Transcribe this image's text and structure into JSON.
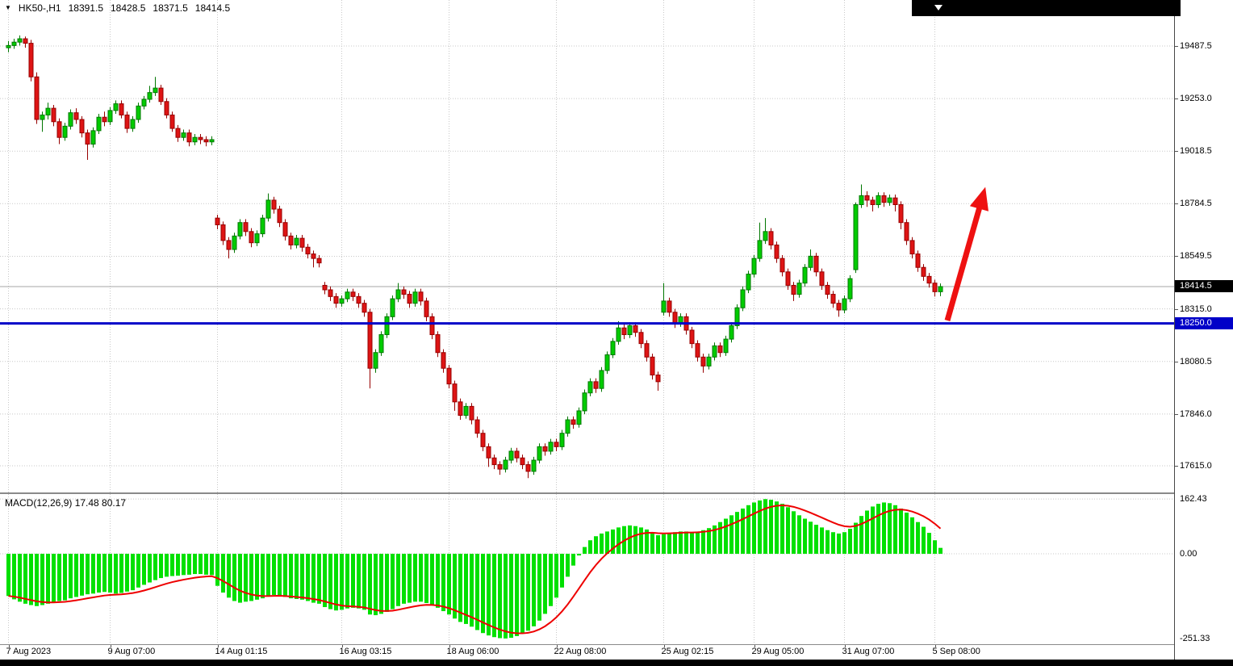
{
  "header": {
    "symbol": "HK50-,H1",
    "open": "18391.5",
    "high": "18428.5",
    "low": "18371.5",
    "close": "18414.5"
  },
  "colors": {
    "up": "#00CC00",
    "up_border": "#007700",
    "down": "#DE1414",
    "down_border": "#970000",
    "macd_bar": "#00E000",
    "signal": "#EE0000",
    "support_line": "#0000C8",
    "current_line": "#A4A4A4",
    "grid": "#C8C8C8",
    "arrow": "#EE1111",
    "current_label_bg": "#000000",
    "support_label_bg": "#0000C8"
  },
  "chart_data": {
    "type": "candlestick",
    "symbol": "HK50-",
    "timeframe": "H1",
    "last_ohlc": {
      "open": 18391.5,
      "high": 18428.5,
      "low": 18371.5,
      "close": 18414.5
    },
    "price_axis": {
      "gridlines": [
        19487.5,
        19253.0,
        19018.5,
        18784.5,
        18549.5,
        18315.0,
        18080.5,
        17846.0,
        17615.0
      ],
      "ylim": [
        17496,
        19693
      ],
      "current_price": 18414.5,
      "support_line": 18250.0
    },
    "x_ticks": [
      {
        "label": "7 Aug 2023",
        "i": 0
      },
      {
        "label": "9 Aug 07:00",
        "i": 18
      },
      {
        "label": "14 Aug 01:15",
        "i": 37
      },
      {
        "label": "16 Aug 03:15",
        "i": 59
      },
      {
        "label": "18 Aug 06:00",
        "i": 78
      },
      {
        "label": "22 Aug 08:00",
        "i": 97
      },
      {
        "label": "25 Aug 02:15",
        "i": 116
      },
      {
        "label": "29 Aug 05:00",
        "i": 132
      },
      {
        "label": "31 Aug 07:00",
        "i": 148
      },
      {
        "label": "5 Sep 08:00",
        "i": 164
      }
    ],
    "candles": [
      [
        19480,
        19510,
        19460,
        19490
      ],
      [
        19490,
        19520,
        19475,
        19505
      ],
      [
        19505,
        19535,
        19490,
        19520
      ],
      [
        19520,
        19530,
        19480,
        19500
      ],
      [
        19500,
        19515,
        19330,
        19350
      ],
      [
        19350,
        19370,
        19140,
        19160
      ],
      [
        19160,
        19195,
        19105,
        19180
      ],
      [
        19180,
        19235,
        19160,
        19210
      ],
      [
        19210,
        19225,
        19130,
        19150
      ],
      [
        19150,
        19165,
        19050,
        19080
      ],
      [
        19080,
        19145,
        19065,
        19130
      ],
      [
        19130,
        19205,
        19115,
        19190
      ],
      [
        19190,
        19210,
        19140,
        19160
      ],
      [
        19160,
        19175,
        19080,
        19100
      ],
      [
        19100,
        19115,
        18980,
        19050
      ],
      [
        19050,
        19125,
        19035,
        19110
      ],
      [
        19110,
        19185,
        19095,
        19170
      ],
      [
        19170,
        19195,
        19130,
        19150
      ],
      [
        19150,
        19215,
        19135,
        19200
      ],
      [
        19200,
        19245,
        19185,
        19230
      ],
      [
        19230,
        19245,
        19165,
        19180
      ],
      [
        19180,
        19195,
        19100,
        19120
      ],
      [
        19120,
        19175,
        19105,
        19160
      ],
      [
        19160,
        19235,
        19145,
        19220
      ],
      [
        19220,
        19265,
        19205,
        19250
      ],
      [
        19250,
        19310,
        19235,
        19280
      ],
      [
        19280,
        19350,
        19265,
        19300
      ],
      [
        19300,
        19315,
        19225,
        19240
      ],
      [
        19240,
        19255,
        19165,
        19180
      ],
      [
        19180,
        19195,
        19105,
        19120
      ],
      [
        19120,
        19135,
        19060,
        19080
      ],
      [
        19080,
        19115,
        19065,
        19100
      ],
      [
        19100,
        19115,
        19040,
        19060
      ],
      [
        19060,
        19095,
        19045,
        19080
      ],
      [
        19080,
        19095,
        19050,
        19070
      ],
      [
        19070,
        19085,
        19040,
        19060
      ],
      [
        19060,
        19085,
        19045,
        19070
      ],
      [
        18720,
        18735,
        18670,
        18690
      ],
      [
        18690,
        18705,
        18600,
        18620
      ],
      [
        18620,
        18635,
        18540,
        18580
      ],
      [
        18580,
        18655,
        18565,
        18640
      ],
      [
        18640,
        18715,
        18625,
        18700
      ],
      [
        18700,
        18715,
        18640,
        18660
      ],
      [
        18660,
        18675,
        18590,
        18610
      ],
      [
        18610,
        18665,
        18595,
        18650
      ],
      [
        18650,
        18735,
        18635,
        18720
      ],
      [
        18720,
        18830,
        18705,
        18800
      ],
      [
        18800,
        18815,
        18740,
        18760
      ],
      [
        18760,
        18775,
        18680,
        18700
      ],
      [
        18700,
        18715,
        18620,
        18640
      ],
      [
        18640,
        18655,
        18580,
        18600
      ],
      [
        18600,
        18645,
        18585,
        18630
      ],
      [
        18630,
        18645,
        18570,
        18590
      ],
      [
        18590,
        18605,
        18540,
        18560
      ],
      [
        18560,
        18575,
        18500,
        18540
      ],
      [
        18540,
        18555,
        18500,
        18520
      ],
      [
        18420,
        18435,
        18380,
        18400
      ],
      [
        18400,
        18415,
        18350,
        18370
      ],
      [
        18370,
        18385,
        18320,
        18340
      ],
      [
        18340,
        18375,
        18325,
        18360
      ],
      [
        18360,
        18405,
        18345,
        18390
      ],
      [
        18390,
        18405,
        18350,
        18370
      ],
      [
        18370,
        18385,
        18320,
        18340
      ],
      [
        18340,
        18355,
        18280,
        18300
      ],
      [
        18300,
        18315,
        17960,
        18050
      ],
      [
        18050,
        18135,
        18030,
        18120
      ],
      [
        18120,
        18215,
        18105,
        18200
      ],
      [
        18200,
        18295,
        18185,
        18280
      ],
      [
        18280,
        18375,
        18265,
        18360
      ],
      [
        18360,
        18430,
        18345,
        18400
      ],
      [
        18400,
        18415,
        18360,
        18380
      ],
      [
        18380,
        18395,
        18320,
        18340
      ],
      [
        18340,
        18405,
        18325,
        18390
      ],
      [
        18390,
        18405,
        18330,
        18350
      ],
      [
        18350,
        18365,
        18260,
        18280
      ],
      [
        18280,
        18295,
        18180,
        18200
      ],
      [
        18200,
        18215,
        18100,
        18120
      ],
      [
        18120,
        18135,
        18030,
        18050
      ],
      [
        18050,
        18065,
        17960,
        17980
      ],
      [
        17980,
        17995,
        17860,
        17900
      ],
      [
        17900,
        17915,
        17820,
        17840
      ],
      [
        17840,
        17895,
        17825,
        17880
      ],
      [
        17880,
        17895,
        17800,
        17820
      ],
      [
        17820,
        17835,
        17740,
        17760
      ],
      [
        17760,
        17775,
        17680,
        17700
      ],
      [
        17700,
        17715,
        17610,
        17650
      ],
      [
        17650,
        17665,
        17600,
        17620
      ],
      [
        17620,
        17635,
        17575,
        17600
      ],
      [
        17600,
        17655,
        17585,
        17640
      ],
      [
        17640,
        17695,
        17625,
        17680
      ],
      [
        17680,
        17695,
        17630,
        17650
      ],
      [
        17650,
        17665,
        17600,
        17620
      ],
      [
        17620,
        17635,
        17560,
        17590
      ],
      [
        17590,
        17655,
        17575,
        17640
      ],
      [
        17640,
        17715,
        17625,
        17700
      ],
      [
        17700,
        17715,
        17660,
        17680
      ],
      [
        17680,
        17735,
        17665,
        17720
      ],
      [
        17720,
        17735,
        17680,
        17700
      ],
      [
        17700,
        17775,
        17685,
        17760
      ],
      [
        17760,
        17835,
        17745,
        17820
      ],
      [
        17820,
        17835,
        17780,
        17800
      ],
      [
        17800,
        17875,
        17785,
        17860
      ],
      [
        17860,
        17955,
        17845,
        17940
      ],
      [
        17940,
        18005,
        17925,
        17990
      ],
      [
        17990,
        18005,
        17940,
        17960
      ],
      [
        17960,
        18055,
        17945,
        18040
      ],
      [
        18040,
        18125,
        18025,
        18110
      ],
      [
        18110,
        18185,
        18095,
        18170
      ],
      [
        18170,
        18260,
        18155,
        18230
      ],
      [
        18230,
        18245,
        18180,
        18200
      ],
      [
        18200,
        18255,
        18185,
        18240
      ],
      [
        18240,
        18255,
        18190,
        18210
      ],
      [
        18210,
        18225,
        18140,
        18160
      ],
      [
        18160,
        18175,
        18080,
        18100
      ],
      [
        18100,
        18115,
        18000,
        18020
      ],
      [
        18020,
        18035,
        17950,
        17990
      ],
      [
        18300,
        18430,
        18285,
        18350
      ],
      [
        18350,
        18365,
        18280,
        18300
      ],
      [
        18300,
        18315,
        18230,
        18250
      ],
      [
        18250,
        18295,
        18235,
        18280
      ],
      [
        18280,
        18295,
        18200,
        18220
      ],
      [
        18220,
        18235,
        18140,
        18160
      ],
      [
        18160,
        18175,
        18080,
        18100
      ],
      [
        18100,
        18115,
        18030,
        18060
      ],
      [
        18060,
        18115,
        18045,
        18100
      ],
      [
        18100,
        18165,
        18085,
        18150
      ],
      [
        18150,
        18165,
        18100,
        18120
      ],
      [
        18120,
        18195,
        18105,
        18180
      ],
      [
        18180,
        18255,
        18165,
        18240
      ],
      [
        18240,
        18335,
        18225,
        18320
      ],
      [
        18320,
        18415,
        18305,
        18400
      ],
      [
        18400,
        18485,
        18385,
        18470
      ],
      [
        18470,
        18555,
        18455,
        18540
      ],
      [
        18540,
        18700,
        18525,
        18620
      ],
      [
        18620,
        18720,
        18605,
        18660
      ],
      [
        18660,
        18675,
        18580,
        18600
      ],
      [
        18600,
        18615,
        18520,
        18540
      ],
      [
        18540,
        18555,
        18460,
        18480
      ],
      [
        18480,
        18495,
        18400,
        18420
      ],
      [
        18420,
        18435,
        18350,
        18380
      ],
      [
        18380,
        18445,
        18365,
        18430
      ],
      [
        18430,
        18515,
        18415,
        18500
      ],
      [
        18500,
        18580,
        18485,
        18550
      ],
      [
        18550,
        18565,
        18460,
        18480
      ],
      [
        18480,
        18495,
        18400,
        18420
      ],
      [
        18420,
        18435,
        18360,
        18380
      ],
      [
        18380,
        18395,
        18320,
        18340
      ],
      [
        18340,
        18355,
        18280,
        18310
      ],
      [
        18310,
        18375,
        18295,
        18360
      ],
      [
        18360,
        18465,
        18345,
        18450
      ],
      [
        18490,
        18790,
        18475,
        18780
      ],
      [
        18780,
        18870,
        18765,
        18820
      ],
      [
        18820,
        18840,
        18770,
        18800
      ],
      [
        18800,
        18815,
        18750,
        18780
      ],
      [
        18780,
        18835,
        18765,
        18820
      ],
      [
        18820,
        18835,
        18770,
        18790
      ],
      [
        18790,
        18825,
        18775,
        18810
      ],
      [
        18810,
        18825,
        18750,
        18780
      ],
      [
        18780,
        18795,
        18670,
        18700
      ],
      [
        18700,
        18715,
        18600,
        18620
      ],
      [
        18620,
        18635,
        18540,
        18560
      ],
      [
        18560,
        18575,
        18480,
        18500
      ],
      [
        18500,
        18515,
        18440,
        18460
      ],
      [
        18460,
        18475,
        18410,
        18430
      ],
      [
        18430,
        18445,
        18370,
        18391.5
      ],
      [
        18391.5,
        18428.5,
        18371.5,
        18414.5
      ]
    ],
    "macd": {
      "label": "MACD(12,26,9) 17.48 80.17",
      "params": [
        12,
        26,
        9
      ],
      "values": {
        "main": 17.48,
        "signal": 80.17
      },
      "axis": [
        162.43,
        0.0,
        -251.33
      ],
      "ylim": [
        -268,
        177
      ],
      "histogram": [
        -125,
        -135,
        -142,
        -148,
        -152,
        -155,
        -152,
        -148,
        -145,
        -140,
        -138,
        -132,
        -128,
        -124,
        -120,
        -118,
        -115,
        -113,
        -115,
        -118,
        -116,
        -112,
        -108,
        -100,
        -92,
        -85,
        -78,
        -72,
        -68,
        -66,
        -65,
        -63,
        -62,
        -60,
        -60,
        -62,
        -63,
        -95,
        -115,
        -130,
        -140,
        -145,
        -142,
        -140,
        -136,
        -132,
        -125,
        -122,
        -124,
        -128,
        -132,
        -134,
        -136,
        -140,
        -145,
        -148,
        -158,
        -164,
        -168,
        -166,
        -162,
        -160,
        -162,
        -166,
        -180,
        -182,
        -178,
        -172,
        -164,
        -155,
        -148,
        -145,
        -142,
        -142,
        -146,
        -152,
        -160,
        -170,
        -180,
        -192,
        -202,
        -208,
        -216,
        -226,
        -235,
        -242,
        -247,
        -250,
        -251,
        -249,
        -244,
        -236,
        -228,
        -215,
        -198,
        -178,
        -155,
        -130,
        -100,
        -68,
        -35,
        -5,
        20,
        40,
        52,
        60,
        66,
        72,
        78,
        82,
        84,
        82,
        78,
        72,
        64,
        55,
        58,
        62,
        64,
        66,
        66,
        64,
        66,
        70,
        76,
        84,
        94,
        104,
        114,
        124,
        134,
        144,
        152,
        158,
        162,
        160,
        155,
        148,
        138,
        126,
        114,
        104,
        95,
        86,
        78,
        70,
        64,
        60,
        64,
        74,
        92,
        112,
        128,
        140,
        148,
        152,
        150,
        144,
        134,
        122,
        108,
        94,
        80,
        62,
        40,
        17.5
      ]
    },
    "annotations": {
      "arrow": {
        "tail": [
          1174,
          397
        ],
        "head": [
          1217,
          246
        ]
      }
    }
  }
}
